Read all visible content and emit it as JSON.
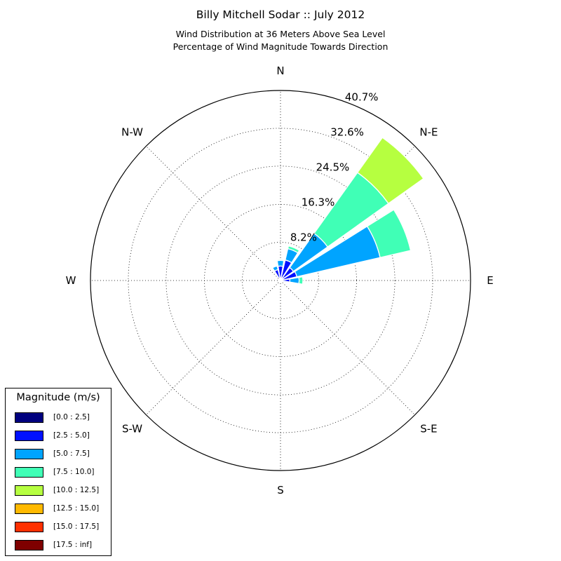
{
  "figure": {
    "title": "Billy Mitchell Sodar :: July 2012",
    "subtitle_lines": [
      "Wind Distribution at 36 Meters Above Sea Level",
      "Percentage of Wind Magnitude Towards Direction"
    ]
  },
  "legend": {
    "title": "Magnitude (m/s)",
    "items": [
      {
        "label": "[0.0 : 2.5]",
        "color": "#00007f"
      },
      {
        "label": "[2.5 : 5.0]",
        "color": "#0010ff"
      },
      {
        "label": "[5.0 : 7.5]",
        "color": "#00a4ff"
      },
      {
        "label": "[7.5 : 10.0]",
        "color": "#40ffb6"
      },
      {
        "label": "[10.0 : 12.5]",
        "color": "#b6ff40"
      },
      {
        "label": "[12.5 : 15.0]",
        "color": "#ffb900"
      },
      {
        "label": "[15.0 : 17.5]",
        "color": "#ff3000"
      },
      {
        "label": "[17.5 : inf]",
        "color": "#7f0000"
      }
    ]
  },
  "chart_data": {
    "type": "polar-stacked-bar",
    "title": "Billy Mitchell Sodar :: July 2012",
    "subtitle": "Wind Distribution at 36 Meters Above Sea Level / Percentage of Wind Magnitude Towards Direction",
    "directions": [
      "N",
      "N-E",
      "E",
      "S-E",
      "S",
      "S-W",
      "W",
      "N-W"
    ],
    "radial_ticks": [
      8.2,
      16.3,
      24.5,
      32.6,
      40.7
    ],
    "radial_tick_labels": [
      "8.2%",
      "16.3%",
      "24.5%",
      "32.6%",
      "40.7%"
    ],
    "rmax": 40.7,
    "grid": true,
    "legend_position": "lower-left",
    "bins": [
      {
        "direction_deg": 0,
        "stack": [
          0.5,
          2.6,
          1.2,
          0.2,
          0,
          0,
          0,
          0
        ]
      },
      {
        "direction_deg": 22.5,
        "stack": [
          0.5,
          4.0,
          2.5,
          0.6,
          0,
          0,
          0,
          0
        ]
      },
      {
        "direction_deg": 45,
        "stack": [
          0.6,
          2.8,
          9.0,
          16.0,
          9.2,
          0,
          0,
          0
        ]
      },
      {
        "direction_deg": 67.5,
        "stack": [
          0.6,
          3.0,
          18.3,
          6.7,
          0,
          0,
          0,
          0
        ]
      },
      {
        "direction_deg": 90,
        "stack": [
          0.4,
          1.6,
          2.0,
          0.8,
          0,
          0,
          0,
          0
        ]
      },
      {
        "direction_deg": 112.5,
        "stack": [
          0.3,
          0.5,
          0,
          0,
          0,
          0,
          0,
          0
        ]
      },
      {
        "direction_deg": 135,
        "stack": [
          0.2,
          0.2,
          0,
          0,
          0,
          0,
          0,
          0
        ]
      },
      {
        "direction_deg": 157.5,
        "stack": [
          0.2,
          0,
          0,
          0,
          0,
          0,
          0,
          0
        ]
      },
      {
        "direction_deg": 180,
        "stack": [
          0.2,
          0,
          0,
          0,
          0,
          0,
          0,
          0
        ]
      },
      {
        "direction_deg": 202.5,
        "stack": [
          0.2,
          0,
          0,
          0,
          0,
          0,
          0,
          0
        ]
      },
      {
        "direction_deg": 225,
        "stack": [
          0.2,
          0,
          0,
          0,
          0,
          0,
          0,
          0
        ]
      },
      {
        "direction_deg": 247.5,
        "stack": [
          0.2,
          0,
          0,
          0,
          0,
          0,
          0,
          0
        ]
      },
      {
        "direction_deg": 270,
        "stack": [
          0.2,
          0,
          0,
          0,
          0,
          0,
          0,
          0
        ]
      },
      {
        "direction_deg": 292.5,
        "stack": [
          0.3,
          0,
          0,
          0,
          0,
          0,
          0,
          0
        ]
      },
      {
        "direction_deg": 315,
        "stack": [
          0.3,
          0.2,
          0,
          0,
          0,
          0,
          0,
          0
        ]
      },
      {
        "direction_deg": 337.5,
        "stack": [
          0.4,
          2.0,
          0.8,
          0,
          0,
          0,
          0,
          0
        ]
      }
    ]
  }
}
